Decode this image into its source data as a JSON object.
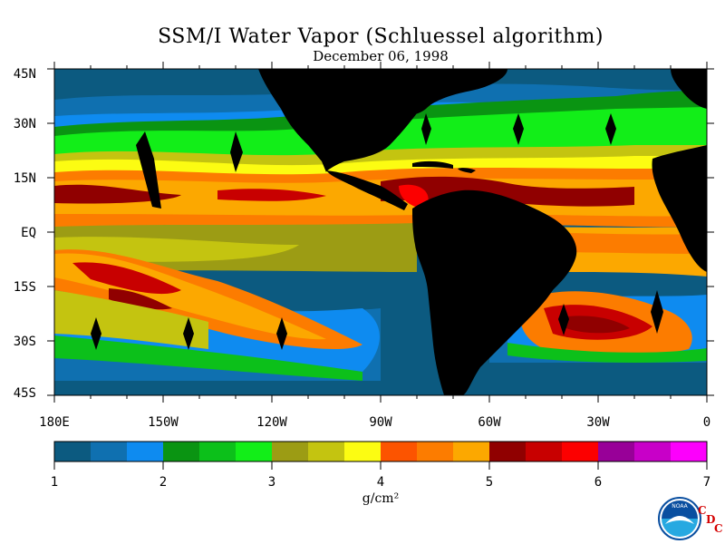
{
  "title": "SSM/I Water Vapor (Schluessel algorithm)",
  "date": "December 06, 1998",
  "lat_labels": [
    "45N",
    "30N",
    "15N",
    "EQ",
    "15S",
    "30S",
    "45S"
  ],
  "lon_labels": [
    "180E",
    "150W",
    "120W",
    "90W",
    "60W",
    "30W",
    "0"
  ],
  "colorbar": {
    "ticks": [
      "1",
      "2",
      "3",
      "4",
      "5",
      "6",
      "7"
    ],
    "units": "g/cm²",
    "colors": [
      "#0c5a80",
      "#0f70b0",
      "#0e8bf0",
      "#0a9412",
      "#0cc01a",
      "#12ee18",
      "#9c9c14",
      "#c4c410",
      "#fcfc12",
      "#fc5400",
      "#fc7c00",
      "#fca800",
      "#900000",
      "#c80000",
      "#fc0000",
      "#980098",
      "#c800c8",
      "#fc00fc"
    ]
  },
  "logo": {
    "text": "NOAA",
    "cdc": [
      "C",
      "D",
      "C"
    ]
  },
  "colors": {
    "land": "#000000",
    "no_data": "#000000",
    "background": "#ffffff"
  }
}
